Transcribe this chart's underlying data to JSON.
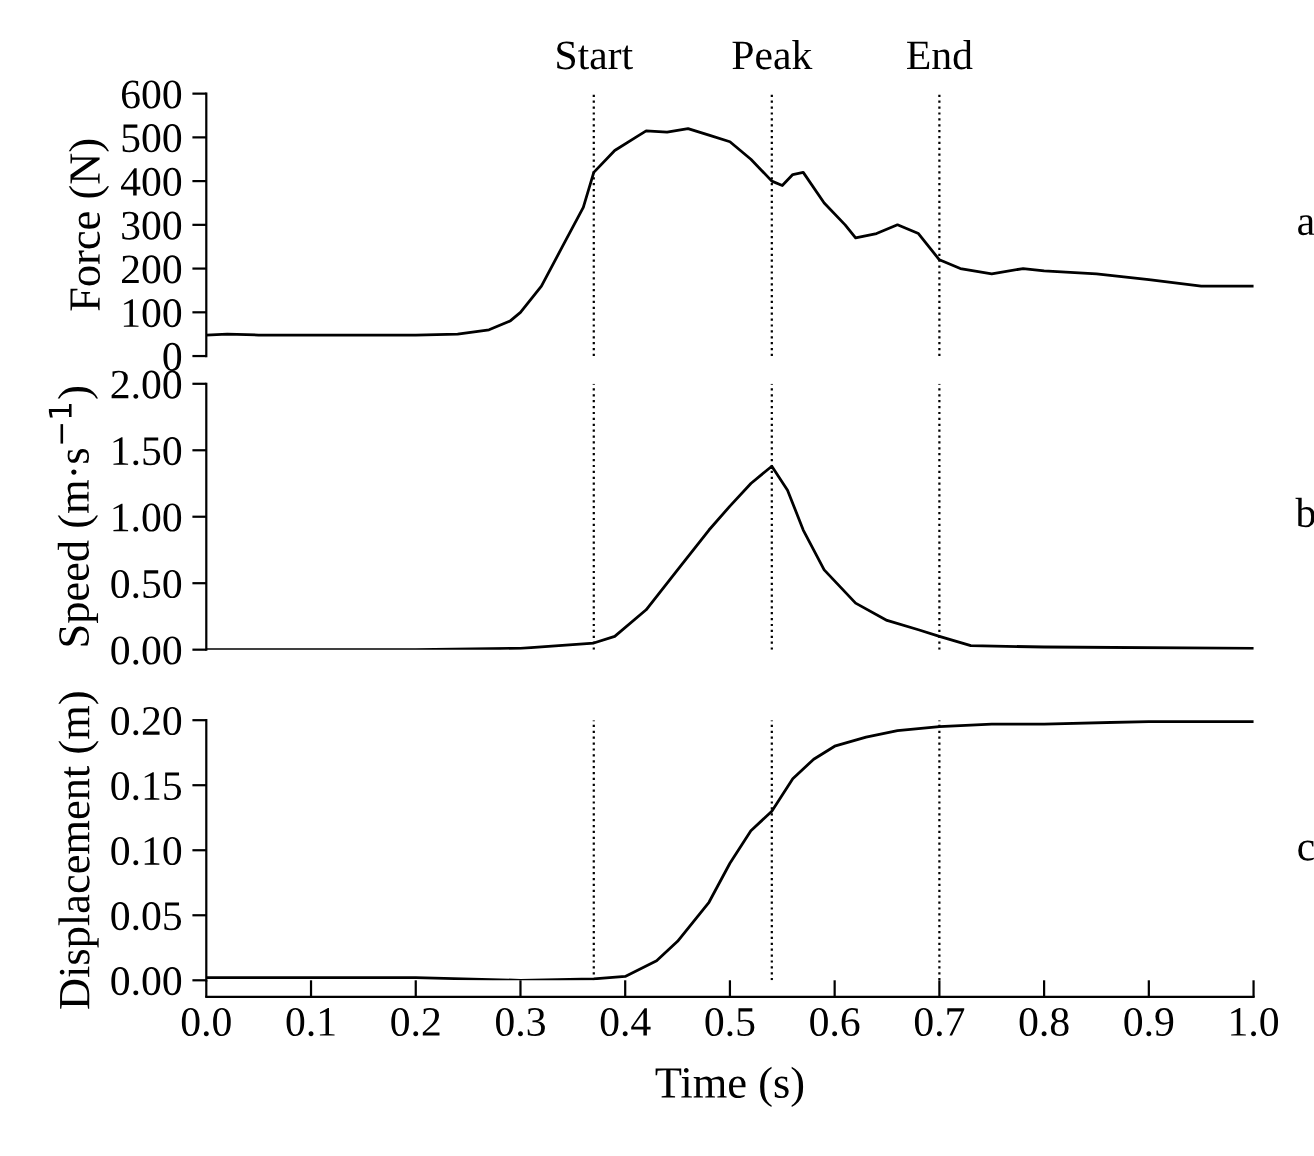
{
  "chart_data": [
    {
      "type": "line",
      "ylabel": "Force (N)",
      "annotations": [
        "a"
      ],
      "x": [
        0,
        0.02,
        0.05,
        0.1,
        0.15,
        0.2,
        0.24,
        0.27,
        0.29,
        0.3,
        0.32,
        0.34,
        0.36,
        0.37,
        0.39,
        0.41,
        0.42,
        0.44,
        0.46,
        0.48,
        0.5,
        0.52,
        0.54,
        0.55,
        0.56,
        0.57,
        0.59,
        0.61,
        0.62,
        0.64,
        0.66,
        0.68,
        0.7,
        0.72,
        0.75,
        0.78,
        0.8,
        0.85,
        0.9,
        0.95,
        1.0
      ],
      "series": [
        {
          "color": "#000000",
          "values": [
            48,
            50,
            48,
            48,
            48,
            48,
            50,
            60,
            80,
            100,
            160,
            250,
            340,
            420,
            470,
            500,
            515,
            512,
            520,
            505,
            490,
            450,
            400,
            390,
            415,
            420,
            350,
            300,
            270,
            280,
            300,
            280,
            220,
            200,
            188,
            200,
            195,
            188,
            175,
            160,
            160
          ]
        }
      ],
      "xlim": [
        0,
        1.0
      ],
      "ylim": [
        0,
        600
      ],
      "yticks": [
        0,
        100,
        200,
        300,
        400,
        500,
        600
      ],
      "tick_labels": "y",
      "ref_lines": [
        {
          "axis": "x",
          "value": 0.37,
          "label": "Start",
          "line_style": "dotted"
        },
        {
          "axis": "x",
          "value": 0.54,
          "label": "Peak",
          "line_style": "dotted"
        },
        {
          "axis": "x",
          "value": 0.7,
          "label": "End",
          "line_style": "dotted"
        }
      ]
    },
    {
      "type": "line",
      "ylabel": "Speed (m·s$^{−1}$)",
      "annotations": [
        "b"
      ],
      "x": [
        0,
        0.2,
        0.3,
        0.37,
        0.39,
        0.42,
        0.45,
        0.48,
        0.5,
        0.52,
        0.54,
        0.555,
        0.57,
        0.59,
        0.62,
        0.65,
        0.68,
        0.7,
        0.73,
        0.8,
        1.0
      ],
      "series": [
        {
          "color": "#000000",
          "values": [
            0,
            0,
            0.01,
            0.05,
            0.1,
            0.3,
            0.6,
            0.9,
            1.08,
            1.25,
            1.38,
            1.2,
            0.9,
            0.6,
            0.35,
            0.22,
            0.15,
            0.1,
            0.03,
            0.02,
            0.01
          ]
        }
      ],
      "xlim": [
        0,
        1.0
      ],
      "ylim": [
        0,
        2.0
      ],
      "yticks": [
        {
          "value": 0,
          "label": "0.00"
        },
        {
          "value": 0.5,
          "label": "0.50"
        },
        {
          "value": 1.0,
          "label": "1.00"
        },
        {
          "value": 1.5,
          "label": "1.50"
        },
        {
          "value": 2.0,
          "label": "2.00"
        }
      ],
      "tick_labels": "y",
      "ref_lines": [
        {
          "axis": "x",
          "value": 0.37,
          "line_style": "dotted"
        },
        {
          "axis": "x",
          "value": 0.54,
          "line_style": "dotted"
        },
        {
          "axis": "x",
          "value": 0.7,
          "line_style": "dotted"
        }
      ]
    },
    {
      "type": "line",
      "ylabel": "Displacement (m)",
      "xlabel": "Time (s)",
      "annotations": [
        "c"
      ],
      "x": [
        0,
        0.2,
        0.3,
        0.37,
        0.4,
        0.43,
        0.45,
        0.48,
        0.5,
        0.52,
        0.54,
        0.56,
        0.58,
        0.6,
        0.63,
        0.66,
        0.7,
        0.75,
        0.8,
        0.9,
        1.0
      ],
      "series": [
        {
          "color": "#000000",
          "values": [
            0.002,
            0.002,
            0,
            0.001,
            0.003,
            0.015,
            0.03,
            0.06,
            0.09,
            0.115,
            0.13,
            0.155,
            0.17,
            0.18,
            0.187,
            0.192,
            0.195,
            0.197,
            0.197,
            0.199,
            0.199
          ]
        }
      ],
      "xlim": [
        0,
        1.0
      ],
      "xticks": [
        {
          "value": 0,
          "label": "0.0"
        },
        0.1,
        0.2,
        0.3,
        0.4,
        0.5,
        0.6,
        0.7,
        0.8,
        0.9,
        {
          "value": 1.0,
          "label": "1.0"
        }
      ],
      "ylim": [
        0,
        0.2
      ],
      "yticks": [
        {
          "value": 0,
          "label": "0.00"
        },
        {
          "value": 0.05,
          "label": "0.05"
        },
        {
          "value": 0.1,
          "label": "0.10"
        },
        {
          "value": 0.15,
          "label": "0.15"
        },
        {
          "value": 0.2,
          "label": "0.20"
        }
      ],
      "ref_lines": [
        {
          "axis": "x",
          "value": 0.37,
          "line_style": "dotted"
        },
        {
          "axis": "x",
          "value": 0.54,
          "line_style": "dotted"
        },
        {
          "axis": "x",
          "value": 0.7,
          "line_style": "dotted"
        }
      ]
    }
  ]
}
